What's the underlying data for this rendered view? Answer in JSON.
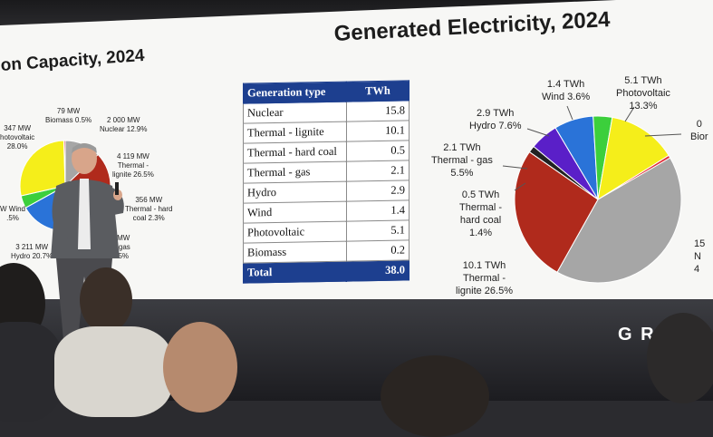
{
  "left_slide": {
    "title": "on Capacity, 2024",
    "labels": [
      {
        "line1": "79 MW",
        "line2": "Biomass 0.5%"
      },
      {
        "line1": "2 000 MW",
        "line2": "Nuclear 12.9%"
      },
      {
        "line1": "347 MW",
        "line2": "hotovoltaic",
        "line3": "28.0%"
      },
      {
        "line1": "4 119 MW",
        "line2": "Thermal -",
        "line3": "lignite 26.5%"
      },
      {
        "line1": "356 MW",
        "line2": "Thermal - hard",
        "line3": "coal 2.3%"
      },
      {
        "line1": "W Wind",
        "line2": ".5%"
      },
      {
        "line1": "9 MW",
        "line2": "l - gas",
        "line3": "4.5%"
      },
      {
        "line1": "3 211 MW",
        "line2": "Hydro 20.7%"
      }
    ]
  },
  "right_slide": {
    "title": "Generated Electricity, 2024",
    "table": {
      "header": [
        "Generation type",
        "TWh"
      ],
      "rows": [
        [
          "Nuclear",
          "15.8"
        ],
        [
          "Thermal - lignite",
          "10.1"
        ],
        [
          "Thermal - hard coal",
          "0.5"
        ],
        [
          "Thermal - gas",
          "2.1"
        ],
        [
          "Hydro",
          "2.9"
        ],
        [
          "Wind",
          "1.4"
        ],
        [
          "Photovoltaic",
          "5.1"
        ],
        [
          "Biomass",
          "0.2"
        ]
      ],
      "total": [
        "Total",
        "38.0"
      ]
    },
    "pie_labels": {
      "wind": {
        "line1": "1.4 TWh",
        "line2": "Wind 3.6%"
      },
      "photovoltaic": {
        "line1": "5.1 TWh",
        "line2": "Photovoltaic",
        "line3": "13.3%"
      },
      "biomass": {
        "line1": "0",
        "line2": "Bior"
      },
      "hydro": {
        "line1": "2.9 TWh",
        "line2": "Hydro 7.6%"
      },
      "gas": {
        "line1": "2.1 TWh",
        "line2": "Thermal - gas",
        "line3": "5.5%"
      },
      "hard_coal": {
        "line1": "0.5 TWh",
        "line2": "Thermal -",
        "line3": "hard coal",
        "line4": "1.4%"
      },
      "lignite": {
        "line1": "10.1 TWh",
        "line2": "Thermal -",
        "line3": "lignite 26.5%"
      },
      "nuclear": {
        "line1": "15",
        "line2": "N",
        "line3": "4"
      }
    }
  },
  "brand_text": "G R",
  "colors": {
    "nuclear": "#a6a6a6",
    "lignite": "#b02a1c",
    "hard_coal": "#222222",
    "gas": "#5a1fc8",
    "hydro": "#2a73d8",
    "wind": "#3ccf3c",
    "photovoltaic": "#f5ee1a",
    "biomass": "#e0303a",
    "table_header": "#1d3f8f",
    "stage_band": "#2ea9e0"
  }
}
